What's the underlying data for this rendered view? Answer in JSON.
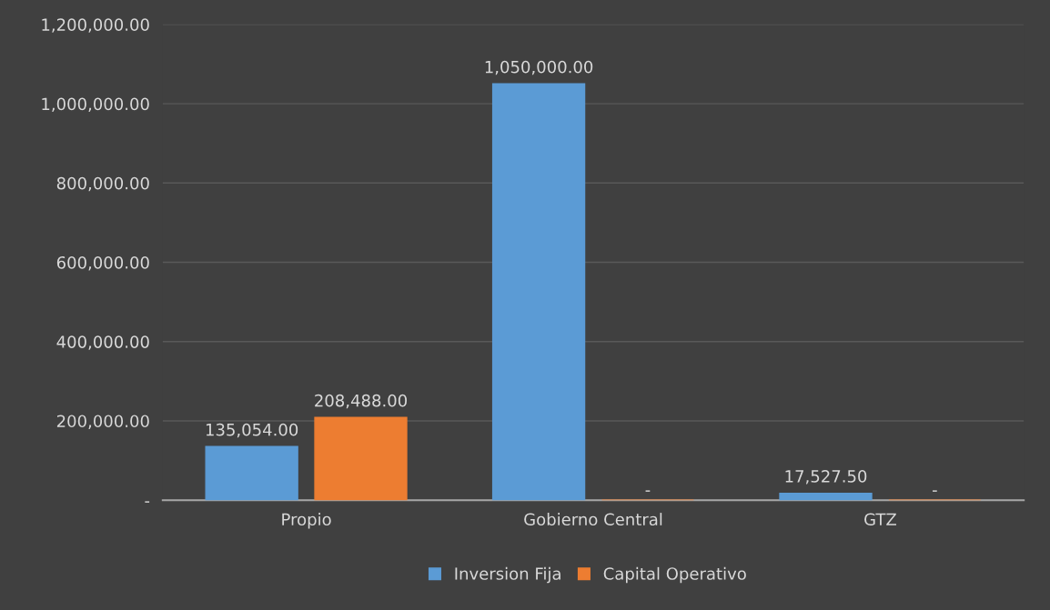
{
  "chart_data": {
    "type": "bar",
    "categories": [
      "Propio",
      "Gobierno Central",
      "GTZ"
    ],
    "series": [
      {
        "name": "Inversion Fija",
        "color": "#5b9bd5",
        "values": [
          135054,
          1050000,
          17527.5
        ],
        "value_labels": [
          "135,054.00",
          "1,050,000.00",
          "17,527.50"
        ]
      },
      {
        "name": "Capital Operativo",
        "color": "#ed7d31",
        "values": [
          208488,
          0,
          0
        ],
        "value_labels": [
          "208,488.00",
          "-",
          "-"
        ]
      }
    ],
    "ylim": [
      0,
      1200000
    ],
    "yticks": [
      {
        "value": 0,
        "label": "-"
      },
      {
        "value": 200000,
        "label": "200,000.00"
      },
      {
        "value": 400000,
        "label": "400,000.00"
      },
      {
        "value": 600000,
        "label": "600,000.00"
      },
      {
        "value": 800000,
        "label": "800,000.00"
      },
      {
        "value": 1000000,
        "label": "1,000,000.00"
      },
      {
        "value": 1200000,
        "label": "1,200,000.00"
      }
    ],
    "grid": "y",
    "legend": "bottom"
  }
}
